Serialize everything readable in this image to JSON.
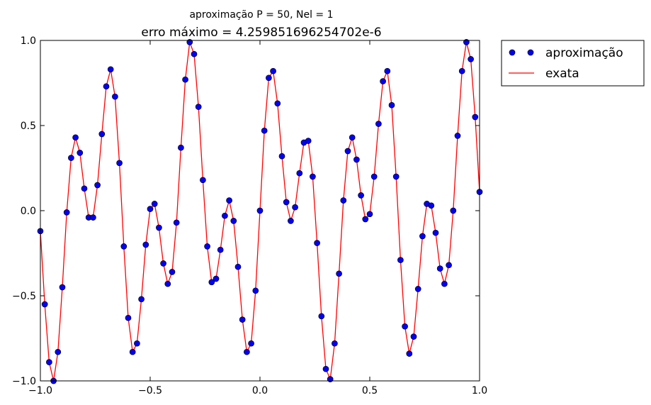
{
  "figure": {
    "suptitle": "aproximação P = 50, Nel = 1",
    "title": "erro máximo = 4.259851696254702e-6"
  },
  "legend": {
    "placement": "outside-right",
    "items": [
      {
        "label": "aproximação",
        "marker": "circle",
        "color": "#0000ff"
      },
      {
        "label": "exata",
        "marker": "line",
        "color": "#ff0000"
      }
    ]
  },
  "chart_data": {
    "type": "line",
    "title": "erro máximo = 4.259851696254702e-6",
    "xlabel": "",
    "ylabel": "",
    "xlim": [
      -1.0,
      1.0
    ],
    "ylim": [
      -1.0,
      1.0
    ],
    "xticks": [
      "−1.0",
      "−0.5",
      "0.0",
      "0.5",
      "1.0"
    ],
    "yticks": [
      "−1.0",
      "−0.5",
      "0.0",
      "0.5",
      "1.0"
    ],
    "grid": false,
    "series": [
      {
        "name": "aproximação",
        "style": "markers",
        "color": "#0000ff",
        "x": [
          -1.0,
          -0.98,
          -0.96,
          -0.94,
          -0.92,
          -0.9,
          -0.88,
          -0.86,
          -0.84,
          -0.82,
          -0.8,
          -0.78,
          -0.76,
          -0.74,
          -0.72,
          -0.7,
          -0.68,
          -0.66,
          -0.64,
          -0.62,
          -0.6,
          -0.58,
          -0.56,
          -0.54,
          -0.52,
          -0.5,
          -0.48,
          -0.46,
          -0.44,
          -0.42,
          -0.4,
          -0.38,
          -0.36,
          -0.34,
          -0.32,
          -0.3,
          -0.28,
          -0.26,
          -0.24,
          -0.22,
          -0.2,
          -0.18,
          -0.16,
          -0.14,
          -0.12,
          -0.1,
          -0.08,
          -0.06,
          -0.04,
          -0.02,
          0.0,
          0.02,
          0.04,
          0.06,
          0.08,
          0.1,
          0.12,
          0.14,
          0.16,
          0.18,
          0.2,
          0.22,
          0.24,
          0.26,
          0.28,
          0.3,
          0.32,
          0.34,
          0.36,
          0.38,
          0.4,
          0.42,
          0.44,
          0.46,
          0.48,
          0.5,
          0.52,
          0.54,
          0.56,
          0.58,
          0.6,
          0.62,
          0.64,
          0.66,
          0.68,
          0.7,
          0.72,
          0.74,
          0.76,
          0.78,
          0.8,
          0.82,
          0.84,
          0.86,
          0.88,
          0.9,
          0.92,
          0.94,
          0.96,
          0.98,
          1.0
        ],
        "y": [
          -0.12,
          -0.55,
          -0.89,
          -1.0,
          -0.83,
          -0.45,
          -0.01,
          0.31,
          0.43,
          0.34,
          0.13,
          -0.04,
          -0.04,
          0.15,
          0.45,
          0.73,
          0.83,
          0.67,
          0.28,
          -0.21,
          -0.63,
          -0.83,
          -0.78,
          -0.52,
          -0.2,
          0.01,
          0.04,
          -0.1,
          -0.31,
          -0.43,
          -0.36,
          -0.07,
          0.37,
          0.77,
          0.99,
          0.92,
          0.61,
          0.18,
          -0.21,
          -0.42,
          -0.4,
          -0.23,
          -0.03,
          0.06,
          -0.06,
          -0.33,
          -0.64,
          -0.83,
          -0.78,
          -0.47,
          0.0,
          0.47,
          0.78,
          0.82,
          0.63,
          0.32,
          0.05,
          -0.06,
          0.02,
          0.22,
          0.4,
          0.41,
          0.2,
          -0.19,
          -0.62,
          -0.93,
          -0.99,
          -0.78,
          -0.37,
          0.06,
          0.35,
          0.43,
          0.3,
          0.09,
          -0.05,
          -0.02,
          0.2,
          0.51,
          0.76,
          0.82,
          0.62,
          0.2,
          -0.29,
          -0.68,
          -0.84,
          -0.74,
          -0.46,
          -0.15,
          0.04,
          0.03,
          -0.13,
          -0.34,
          -0.43,
          -0.32,
          0.0,
          0.44,
          0.82,
          0.99,
          0.89,
          0.55,
          0.11
        ]
      },
      {
        "name": "exata",
        "style": "line",
        "color": "#ff0000",
        "x": [
          -1.0,
          -0.98,
          -0.96,
          -0.94,
          -0.92,
          -0.9,
          -0.88,
          -0.86,
          -0.84,
          -0.82,
          -0.8,
          -0.78,
          -0.76,
          -0.74,
          -0.72,
          -0.7,
          -0.68,
          -0.66,
          -0.64,
          -0.62,
          -0.6,
          -0.58,
          -0.56,
          -0.54,
          -0.52,
          -0.5,
          -0.48,
          -0.46,
          -0.44,
          -0.42,
          -0.4,
          -0.38,
          -0.36,
          -0.34,
          -0.32,
          -0.3,
          -0.28,
          -0.26,
          -0.24,
          -0.22,
          -0.2,
          -0.18,
          -0.16,
          -0.14,
          -0.12,
          -0.1,
          -0.08,
          -0.06,
          -0.04,
          -0.02,
          0.0,
          0.02,
          0.04,
          0.06,
          0.08,
          0.1,
          0.12,
          0.14,
          0.16,
          0.18,
          0.2,
          0.22,
          0.24,
          0.26,
          0.28,
          0.3,
          0.32,
          0.34,
          0.36,
          0.38,
          0.4,
          0.42,
          0.44,
          0.46,
          0.48,
          0.5,
          0.52,
          0.54,
          0.56,
          0.58,
          0.6,
          0.62,
          0.64,
          0.66,
          0.68,
          0.7,
          0.72,
          0.74,
          0.76,
          0.78,
          0.8,
          0.82,
          0.84,
          0.86,
          0.88,
          0.9,
          0.92,
          0.94,
          0.96,
          0.98,
          1.0
        ],
        "y": [
          -0.12,
          -0.55,
          -0.89,
          -1.0,
          -0.83,
          -0.45,
          -0.01,
          0.31,
          0.43,
          0.34,
          0.13,
          -0.04,
          -0.04,
          0.15,
          0.45,
          0.73,
          0.83,
          0.67,
          0.28,
          -0.21,
          -0.63,
          -0.83,
          -0.78,
          -0.52,
          -0.2,
          0.01,
          0.04,
          -0.1,
          -0.31,
          -0.43,
          -0.36,
          -0.07,
          0.37,
          0.77,
          0.99,
          0.92,
          0.61,
          0.18,
          -0.21,
          -0.42,
          -0.4,
          -0.23,
          -0.03,
          0.06,
          -0.06,
          -0.33,
          -0.64,
          -0.83,
          -0.78,
          -0.47,
          0.0,
          0.47,
          0.78,
          0.82,
          0.63,
          0.32,
          0.05,
          -0.06,
          0.02,
          0.22,
          0.4,
          0.41,
          0.2,
          -0.19,
          -0.62,
          -0.93,
          -0.99,
          -0.78,
          -0.37,
          0.06,
          0.35,
          0.43,
          0.3,
          0.09,
          -0.05,
          -0.02,
          0.2,
          0.51,
          0.76,
          0.82,
          0.62,
          0.2,
          -0.29,
          -0.68,
          -0.84,
          -0.74,
          -0.46,
          -0.15,
          0.04,
          0.03,
          -0.13,
          -0.34,
          -0.43,
          -0.32,
          0.0,
          0.44,
          0.82,
          0.99,
          0.89,
          0.55,
          0.11
        ]
      }
    ]
  }
}
